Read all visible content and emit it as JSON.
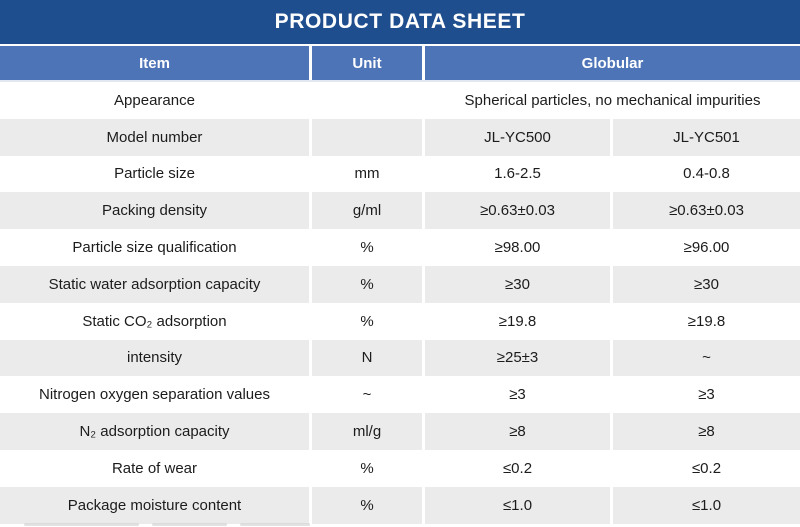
{
  "title": "PRODUCT DATA SHEET",
  "colors": {
    "title_bar_bg": "#1F4E8E",
    "header_bg": "#4D74B7",
    "alt_row_bg": "#EBEBEB",
    "header_text": "#FFFFFF",
    "body_text": "#1C1C1C"
  },
  "table": {
    "headers": {
      "item": "Item",
      "unit": "Unit",
      "globular": "Globular"
    },
    "rows": [
      {
        "item": "Appearance",
        "unit": "",
        "span": "Spherical particles, no mechanical impurities"
      },
      {
        "item": "Model number",
        "unit": "",
        "v1": "JL-YC500",
        "v2": "JL-YC501"
      },
      {
        "item": "Particle size",
        "unit": "mm",
        "v1": "1.6-2.5",
        "v2": "0.4-0.8"
      },
      {
        "item": "Packing density",
        "unit": "g/ml",
        "v1": "≥0.63±0.03",
        "v2": "≥0.63±0.03"
      },
      {
        "item": "Particle size qualification",
        "unit": "%",
        "v1": "≥98.00",
        "v2": "≥96.00"
      },
      {
        "item": "Static water adsorption capacity",
        "unit": "%",
        "v1": "≥30",
        "v2": "≥30"
      },
      {
        "item": "Static CO₂ adsorption",
        "unit": "%",
        "v1": "≥19.8",
        "v2": "≥19.8"
      },
      {
        "item": "intensity",
        "unit": "N",
        "v1": "≥25±3",
        "v2": "~"
      },
      {
        "item": "Nitrogen oxygen separation values",
        "unit": "~",
        "v1": "≥3",
        "v2": "≥3"
      },
      {
        "item": "N₂ adsorption capacity",
        "unit": "ml/g",
        "v1": "≥8",
        "v2": "≥8"
      },
      {
        "item": "Rate of wear",
        "unit": "%",
        "v1": "≤0.2",
        "v2": "≤0.2"
      },
      {
        "item": "Package moisture content",
        "unit": "%",
        "v1": "≤1.0",
        "v2": "≤1.0"
      }
    ]
  }
}
